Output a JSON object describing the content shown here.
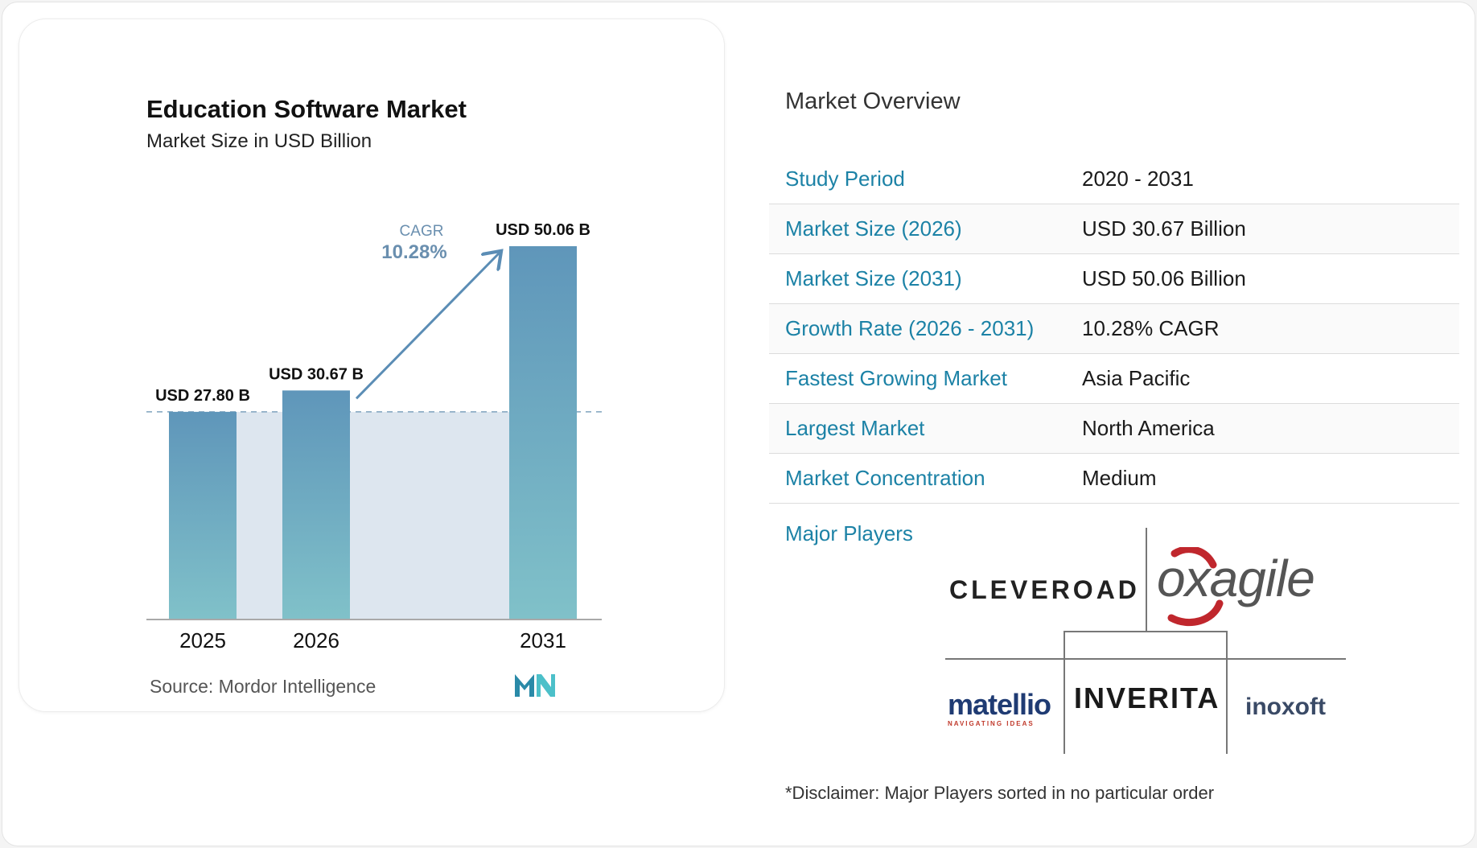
{
  "chart_data": {
    "type": "bar",
    "title": "Education Software Market",
    "subtitle": "Market Size in USD Billion",
    "categories": [
      "2025",
      "2026",
      "2031"
    ],
    "values": [
      27.8,
      30.67,
      50.06
    ],
    "data_labels": [
      "USD 27.80 B",
      "USD 30.67 B",
      "USD 50.06 B"
    ],
    "cagr_label": "CAGR",
    "cagr_value": "10.28%",
    "ylim": [
      0,
      50.06
    ],
    "grid": false,
    "legend": "none",
    "source_prefix": "Source:",
    "source": "Mordor Intelligence",
    "colors": {
      "bar_top": "#5f96ba",
      "bar_bottom": "#80c1c9",
      "band": "#dde6ef",
      "arrow": "#5b8db5",
      "cagr_text": "#6a8faf"
    }
  },
  "overview": {
    "title": "Market Overview",
    "rows": [
      {
        "key": "Study Period",
        "value": "2020 - 2031"
      },
      {
        "key": "Market Size (2026)",
        "value": "USD 30.67 Billion"
      },
      {
        "key": "Market Size (2031)",
        "value": "USD 50.06 Billion"
      },
      {
        "key": "Growth Rate (2026 - 2031)",
        "value": "10.28% CAGR"
      },
      {
        "key": "Fastest Growing Market",
        "value": "Asia Pacific"
      },
      {
        "key": "Largest Market",
        "value": "North America"
      },
      {
        "key": "Market Concentration",
        "value": "Medium"
      }
    ],
    "players_label": "Major Players",
    "players": {
      "cleveroad": "CLEVEROAD",
      "oxagile": "oxagile",
      "matellio": "matellio",
      "matellio_tagline": "NAVIGATING IDEAS",
      "inverita": "INVERITA",
      "inoxoft": "inoxoft"
    },
    "disclaimer": "*Disclaimer: Major Players sorted in no particular order"
  }
}
